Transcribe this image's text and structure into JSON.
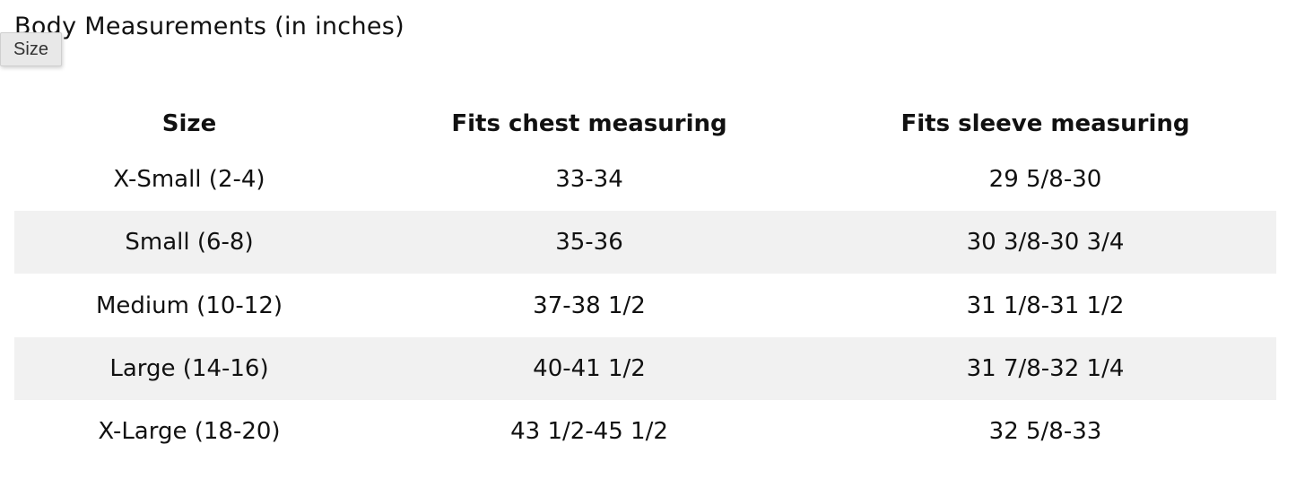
{
  "header": {
    "title": "Body Measurements (in inches)"
  },
  "tooltip": {
    "text": "Size"
  },
  "table": {
    "columns": [
      "Size",
      "Fits chest measuring",
      "Fits sleeve measuring"
    ],
    "rows": [
      [
        "X-Small (2-4)",
        "33-34",
        "29 5/8-30"
      ],
      [
        "Small (6-8)",
        "35-36",
        "30 3/8-30 3/4"
      ],
      [
        "Medium (10-12)",
        "37-38 1/2",
        "31 1/8-31 1/2"
      ],
      [
        "Large (14-16)",
        "40-41 1/2",
        "31 7/8-32 1/4"
      ],
      [
        "X-Large (18-20)",
        "43 1/2-45 1/2",
        "32 5/8-33"
      ]
    ]
  }
}
